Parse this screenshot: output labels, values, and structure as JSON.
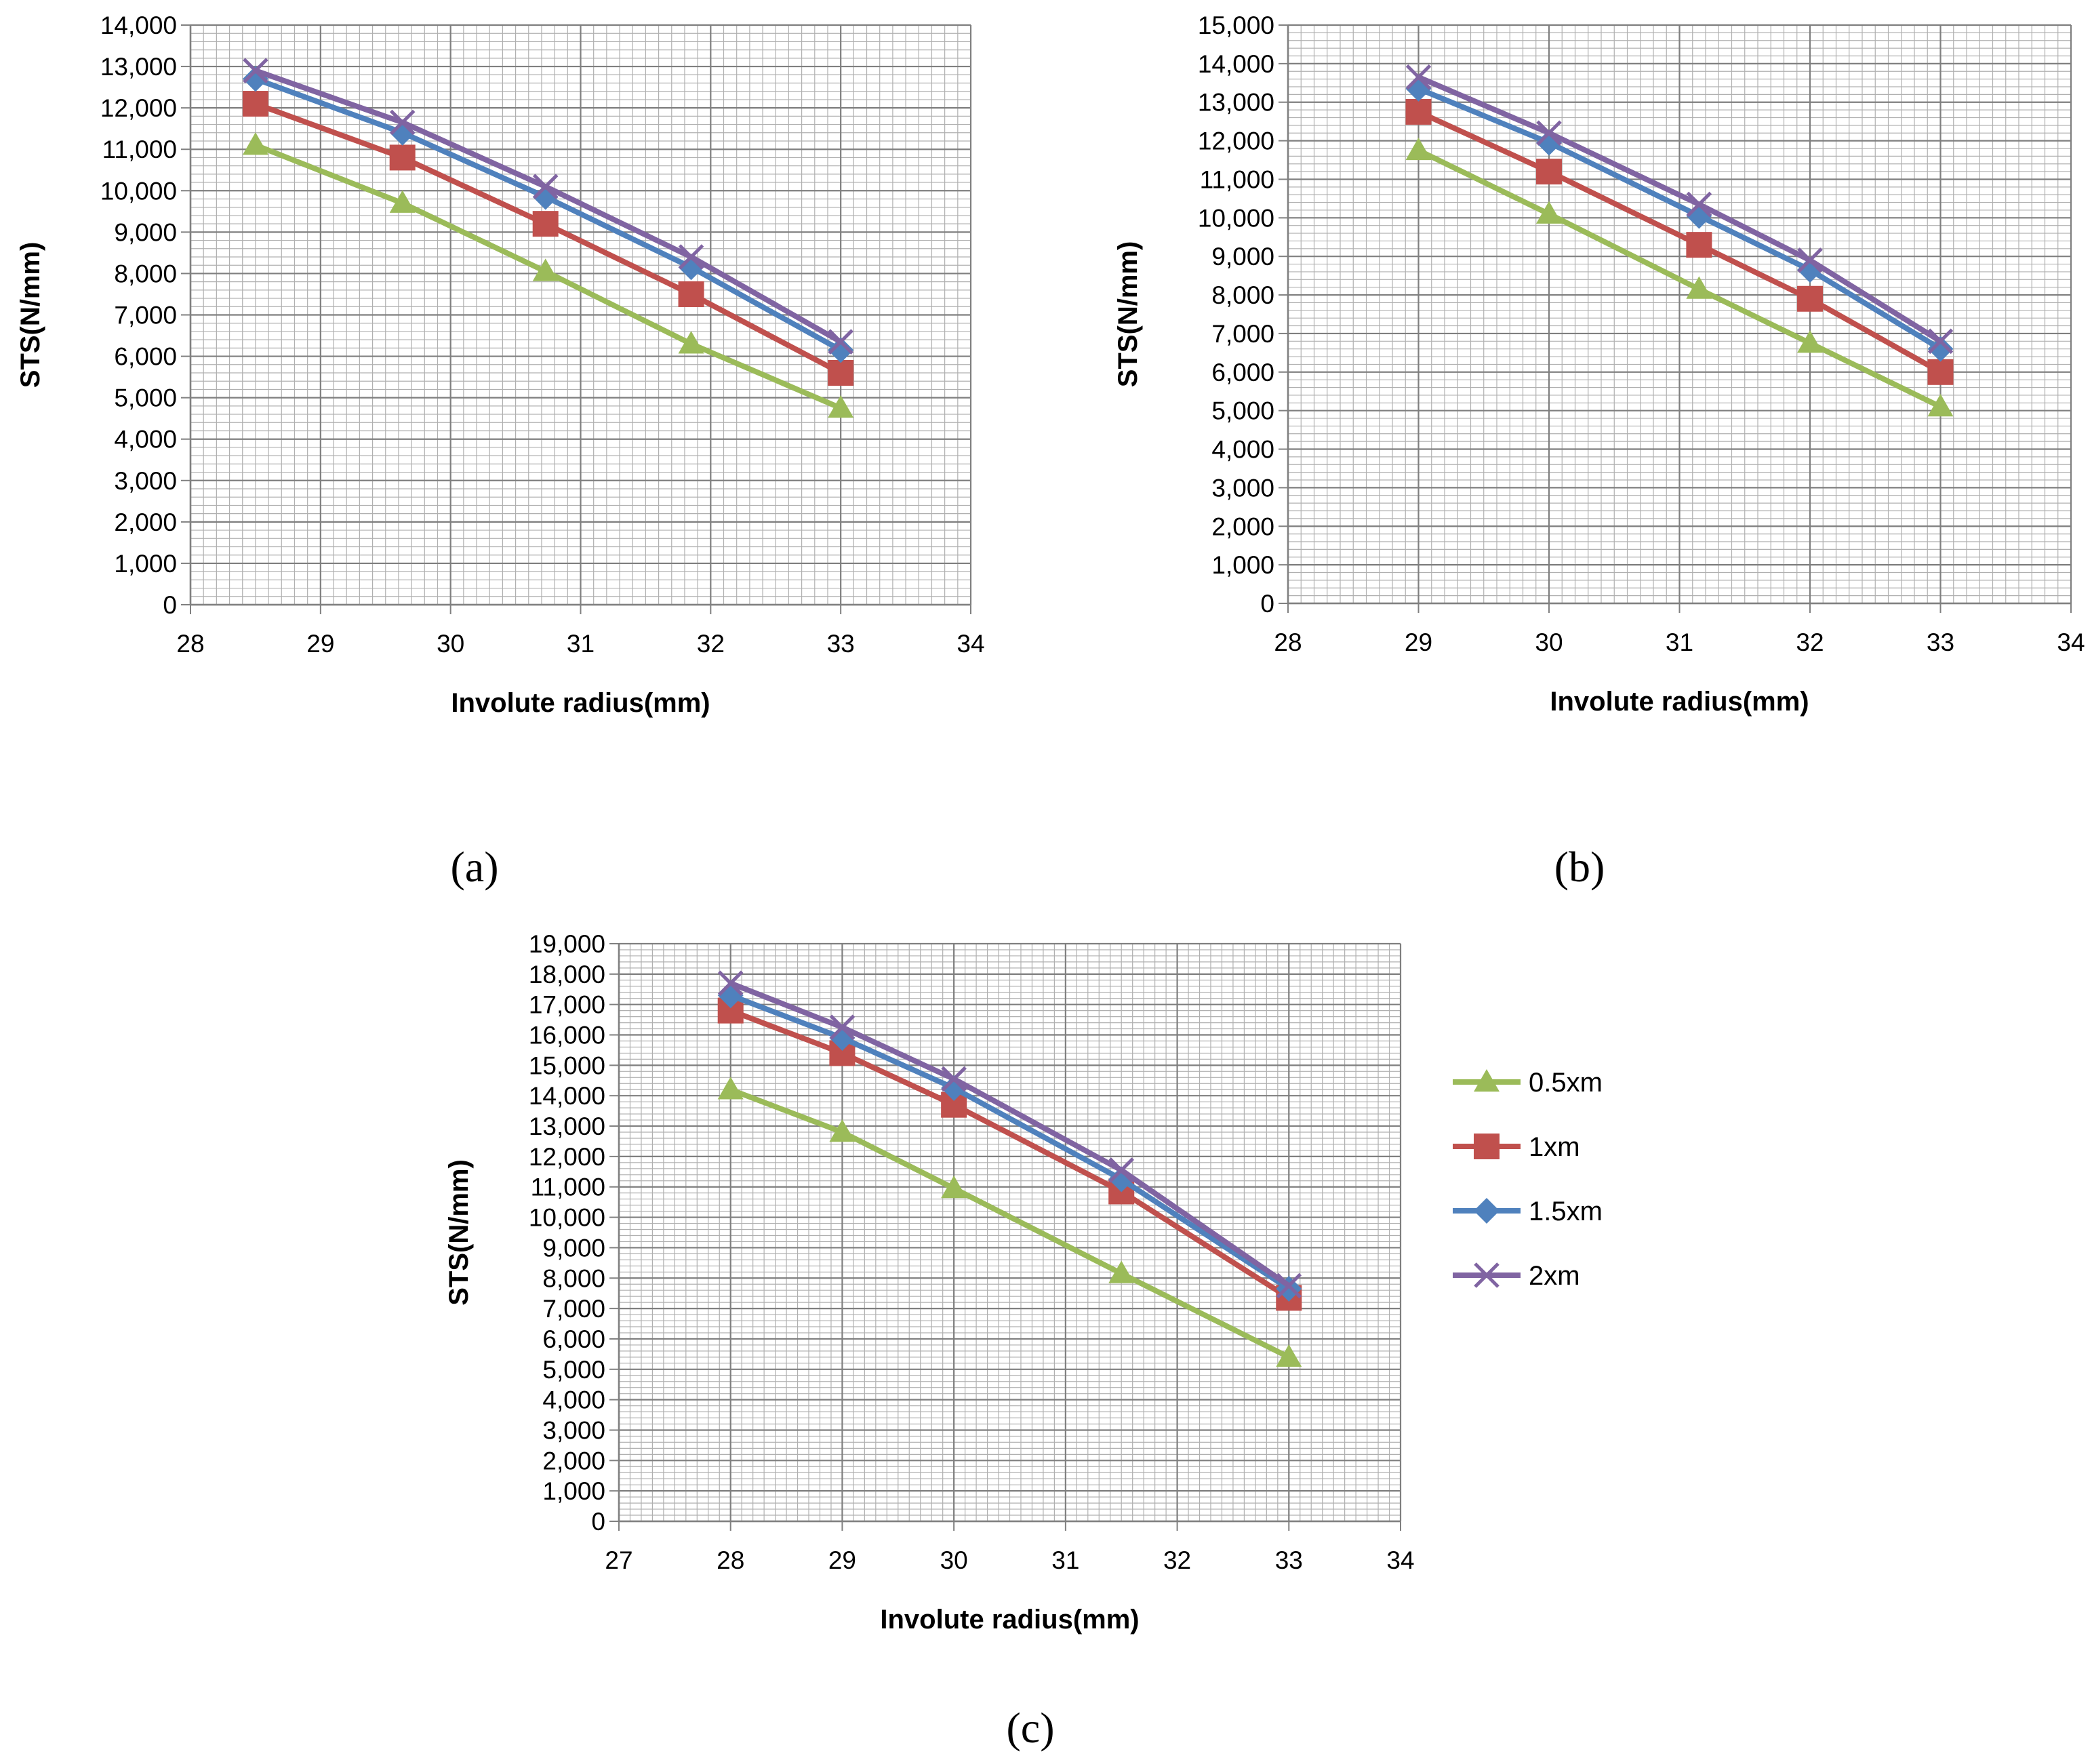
{
  "figure": {
    "panel_labels": [
      "(a)",
      "(b)",
      "(c)"
    ]
  },
  "legend": {
    "entries": [
      {
        "label": "0.5xm",
        "color": "#9BBB59",
        "marker": "triangle"
      },
      {
        "label": "1xm",
        "color": "#C0504D",
        "marker": "square"
      },
      {
        "label": "1.5xm",
        "color": "#4F81BD",
        "marker": "diamond"
      },
      {
        "label": "2xm",
        "color": "#8064A2",
        "marker": "x"
      }
    ]
  },
  "chart_data": [
    {
      "panel": "(a)",
      "type": "line",
      "xlabel": "Involute radius(mm)",
      "ylabel": "STS(N/mm)",
      "xlim": [
        28,
        34
      ],
      "ylim": [
        0,
        14000
      ],
      "xticks": [
        "28",
        "29",
        "30",
        "31",
        "32",
        "33",
        "34"
      ],
      "yticks": [
        "0",
        "1,000",
        "2,000",
        "3,000",
        "4,000",
        "5,000",
        "6,000",
        "7,000",
        "8,000",
        "9,000",
        "10,000",
        "11,000",
        "12,000",
        "13,000",
        "14,000"
      ],
      "grid": true,
      "series": [
        {
          "name": "0.5xm",
          "x": [
            28.5,
            29.63,
            30.73,
            31.85,
            33.0
          ],
          "y": [
            11100,
            9700,
            8050,
            6300,
            4750
          ]
        },
        {
          "name": "1xm",
          "x": [
            28.5,
            29.63,
            30.73,
            31.85,
            33.0
          ],
          "y": [
            12100,
            10800,
            9200,
            7500,
            5600
          ]
        },
        {
          "name": "1.5xm",
          "x": [
            28.5,
            29.63,
            30.73,
            31.85,
            33.0
          ],
          "y": [
            12700,
            11400,
            9850,
            8150,
            6150
          ]
        },
        {
          "name": "2xm",
          "x": [
            28.5,
            29.63,
            30.73,
            31.85,
            33.0
          ],
          "y": [
            12900,
            11650,
            10100,
            8400,
            6350
          ]
        }
      ]
    },
    {
      "panel": "(b)",
      "type": "line",
      "xlabel": "Involute radius(mm)",
      "ylabel": "STS(N/mm)",
      "xlim": [
        28,
        34
      ],
      "ylim": [
        0,
        15000
      ],
      "xticks": [
        "28",
        "29",
        "30",
        "31",
        "32",
        "33",
        "34"
      ],
      "yticks": [
        "0",
        "1,000",
        "2,000",
        "3,000",
        "4,000",
        "5,000",
        "6,000",
        "7,000",
        "8,000",
        "9,000",
        "10,000",
        "11,000",
        "12,000",
        "13,000",
        "14,000",
        "15,000"
      ],
      "grid": true,
      "series": [
        {
          "name": "0.5xm",
          "x": [
            29.0,
            30.0,
            31.15,
            32.0,
            33.0
          ],
          "y": [
            11750,
            10100,
            8150,
            6750,
            5100
          ]
        },
        {
          "name": "1xm",
          "x": [
            29.0,
            30.0,
            31.15,
            32.0,
            33.0
          ],
          "y": [
            12750,
            11200,
            9300,
            7900,
            6000
          ]
        },
        {
          "name": "1.5xm",
          "x": [
            29.0,
            30.0,
            31.15,
            32.0,
            33.0
          ],
          "y": [
            13350,
            11950,
            10050,
            8650,
            6600
          ]
        },
        {
          "name": "2xm",
          "x": [
            29.0,
            30.0,
            31.15,
            32.0,
            33.0
          ],
          "y": [
            13650,
            12200,
            10350,
            8900,
            6800
          ]
        }
      ]
    },
    {
      "panel": "(c)",
      "type": "line",
      "xlabel": "Involute radius(mm)",
      "ylabel": "STS(N/mm)",
      "xlim": [
        27,
        34
      ],
      "ylim": [
        0,
        19000
      ],
      "xticks": [
        "27",
        "28",
        "29",
        "30",
        "31",
        "32",
        "33",
        "34"
      ],
      "yticks": [
        "0",
        "1,000",
        "2,000",
        "3,000",
        "4,000",
        "5,000",
        "6,000",
        "7,000",
        "8,000",
        "9,000",
        "10,000",
        "11,000",
        "12,000",
        "13,000",
        "14,000",
        "15,000",
        "16,000",
        "17,000",
        "18,000",
        "19,000"
      ],
      "grid": true,
      "series": [
        {
          "name": "0.5xm",
          "x": [
            28.0,
            29.0,
            30.0,
            31.5,
            33.0
          ],
          "y": [
            14200,
            12800,
            10950,
            8150,
            5400
          ]
        },
        {
          "name": "1xm",
          "x": [
            28.0,
            29.0,
            30.0,
            31.5,
            33.0
          ],
          "y": [
            16800,
            15400,
            13700,
            10850,
            7350
          ]
        },
        {
          "name": "1.5xm",
          "x": [
            28.0,
            29.0,
            30.0,
            31.5,
            33.0
          ],
          "y": [
            17300,
            15900,
            14250,
            11250,
            7650
          ]
        },
        {
          "name": "2xm",
          "x": [
            28.0,
            29.0,
            30.0,
            31.5,
            33.0
          ],
          "y": [
            17700,
            16250,
            14550,
            11550,
            7750
          ]
        }
      ]
    }
  ]
}
